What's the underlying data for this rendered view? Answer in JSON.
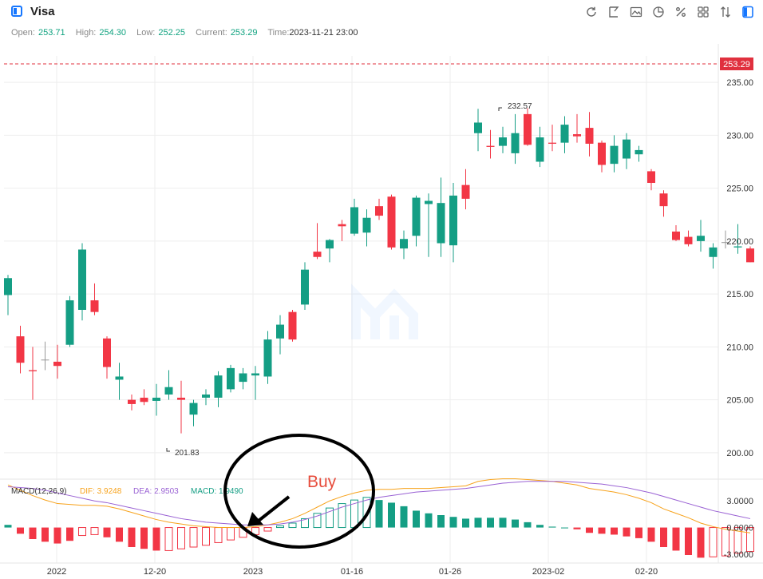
{
  "header": {
    "title": "Visa",
    "tools": [
      "refresh-icon",
      "draw-line-icon",
      "picture-icon",
      "pie-icon",
      "percent-icon",
      "grid-icon",
      "sort-icon",
      "panel-icon"
    ]
  },
  "ohlc": {
    "open_label": "Open:",
    "open": "253.71",
    "high_label": "High:",
    "high": "254.30",
    "low_label": "Low:",
    "low": "252.25",
    "current_label": "Current:",
    "current": "253.29",
    "time_label": "Time:",
    "time": "2023-11-21 23:00"
  },
  "colors": {
    "up": "#149e84",
    "down": "#f23645",
    "dif": "#f7a21b",
    "dea": "#9a62d4",
    "grid": "#eeeeee",
    "price_line": "#e0303e"
  },
  "chart_data": [
    {
      "type": "candlestick",
      "title": "Visa",
      "ylim": [
        197.5,
        237.5
      ],
      "y_ticks": [
        "235.00",
        "230.00",
        "225.00",
        "220.00",
        "215.00",
        "210.00",
        "205.00",
        "200.00"
      ],
      "x_ticks": [
        "2022",
        "12-20",
        "2023",
        "01-16",
        "01-26",
        "2023-02",
        "02-20"
      ],
      "last_price": "253.29",
      "annotations": {
        "high": "232.57",
        "low": "201.83"
      },
      "candles": [
        [
          214.9,
          216.8,
          213.0,
          216.5
        ],
        [
          211.0,
          212.0,
          207.5,
          208.5
        ],
        [
          207.8,
          210.0,
          205.0,
          207.7
        ],
        [
          208.8,
          210.5,
          207.8,
          208.8
        ],
        [
          208.6,
          210.2,
          207.0,
          208.2
        ],
        [
          210.2,
          214.8,
          210.0,
          214.4
        ],
        [
          213.5,
          219.8,
          212.5,
          219.2
        ],
        [
          214.4,
          216.0,
          213.0,
          213.3
        ],
        [
          210.8,
          211.0,
          207.0,
          208.1
        ],
        [
          206.9,
          208.5,
          205.0,
          207.2
        ],
        [
          205.0,
          205.5,
          204.0,
          204.6
        ],
        [
          205.2,
          206.0,
          204.5,
          204.8
        ],
        [
          204.9,
          206.5,
          203.5,
          205.2
        ],
        [
          205.5,
          207.8,
          205.0,
          206.2
        ],
        [
          205.2,
          206.8,
          201.83,
          205.0
        ],
        [
          203.6,
          205.0,
          202.5,
          204.7
        ],
        [
          205.2,
          206.0,
          204.5,
          205.5
        ],
        [
          205.2,
          207.7,
          204.3,
          207.3
        ],
        [
          206.0,
          208.3,
          205.7,
          208.0
        ],
        [
          206.7,
          208.0,
          206.0,
          207.5
        ],
        [
          207.3,
          208.2,
          205.0,
          207.5
        ],
        [
          207.2,
          211.5,
          206.5,
          210.7
        ],
        [
          210.8,
          213.0,
          209.3,
          212.1
        ],
        [
          213.3,
          213.5,
          210.5,
          210.7
        ],
        [
          214.0,
          218.0,
          213.5,
          217.3
        ],
        [
          219.0,
          221.7,
          218.3,
          218.5
        ],
        [
          219.3,
          220.2,
          218.0,
          220.1
        ],
        [
          221.6,
          222.0,
          220.0,
          221.4
        ],
        [
          220.7,
          224.0,
          220.5,
          223.2
        ],
        [
          220.8,
          223.0,
          219.5,
          222.2
        ],
        [
          223.3,
          224.0,
          222.0,
          222.4
        ],
        [
          224.2,
          224.4,
          219.2,
          219.4
        ],
        [
          219.3,
          221.0,
          218.3,
          220.2
        ],
        [
          220.5,
          224.3,
          219.5,
          224.1
        ],
        [
          223.5,
          224.5,
          218.5,
          223.8
        ],
        [
          219.8,
          226.0,
          218.5,
          223.6
        ],
        [
          219.6,
          225.5,
          218.0,
          224.3
        ],
        [
          225.3,
          226.8,
          223.0,
          224.0
        ],
        [
          230.2,
          232.5,
          228.5,
          231.2
        ],
        [
          229.0,
          230.5,
          227.8,
          228.9
        ],
        [
          229.0,
          230.8,
          228.3,
          229.8
        ],
        [
          228.3,
          232.0,
          227.3,
          230.2
        ],
        [
          232.0,
          232.57,
          229.0,
          229.1
        ],
        [
          227.5,
          230.8,
          227.0,
          229.8
        ],
        [
          229.3,
          231.0,
          228.5,
          229.2
        ],
        [
          229.3,
          231.8,
          228.3,
          231.0
        ],
        [
          230.1,
          232.0,
          229.3,
          229.9
        ],
        [
          230.7,
          232.2,
          228.0,
          229.2
        ],
        [
          229.3,
          229.5,
          226.5,
          227.2
        ],
        [
          227.3,
          230.0,
          226.5,
          229.0
        ],
        [
          227.8,
          230.2,
          226.8,
          229.6
        ],
        [
          228.2,
          229.0,
          227.5,
          228.6
        ],
        [
          226.6,
          226.8,
          224.8,
          225.5
        ],
        [
          224.5,
          224.8,
          222.3,
          223.3
        ],
        [
          220.9,
          221.5,
          220.0,
          220.1
        ],
        [
          220.4,
          221.0,
          219.5,
          219.7
        ],
        [
          220.0,
          222.0,
          219.0,
          220.5
        ],
        [
          218.5,
          219.8,
          217.4,
          219.4
        ],
        [
          219.9,
          221.0,
          219.3,
          219.9
        ],
        [
          219.4,
          221.6,
          218.8,
          219.5
        ],
        [
          219.3,
          219.5,
          218.0,
          218.0
        ]
      ]
    },
    {
      "type": "macd",
      "indicator_label": "MACD(12,26,9)",
      "dif_label": "DIF: 3.9248",
      "dea_label": "DEA: 2.9503",
      "macd_label": "MACD: 1.9490",
      "ylim": [
        -4.0,
        5.0
      ],
      "y_ticks": [
        "3.0000",
        "0.0000",
        "-3.0000"
      ],
      "histogram": [
        0.3,
        -0.7,
        -1.3,
        -1.6,
        -1.8,
        -1.5,
        -0.9,
        -0.8,
        -1.1,
        -1.6,
        -2.2,
        -2.4,
        -2.6,
        -2.6,
        -2.4,
        -2.2,
        -2.0,
        -1.7,
        -1.4,
        -1.1,
        -0.8,
        -0.4,
        0.2,
        0.5,
        1.0,
        1.6,
        2.2,
        2.7,
        3.1,
        3.4,
        3.1,
        2.8,
        2.4,
        1.9,
        1.6,
        1.4,
        1.2,
        1.0,
        1.1,
        1.1,
        1.1,
        0.9,
        0.6,
        0.3,
        0.1,
        0.0,
        -0.2,
        -0.6,
        -0.7,
        -0.8,
        -1.0,
        -1.2,
        -1.6,
        -2.2,
        -2.6,
        -3.1,
        -3.4,
        -3.3,
        -3.2,
        -2.9,
        -2.7
      ],
      "dif": [
        4.8,
        4.2,
        3.6,
        3.1,
        2.7,
        2.6,
        2.5,
        2.5,
        2.4,
        2.1,
        1.7,
        1.3,
        0.9,
        0.6,
        0.4,
        0.2,
        0.1,
        0.0,
        0.0,
        0.0,
        0.1,
        0.3,
        0.6,
        1.0,
        1.6,
        2.3,
        3.0,
        3.5,
        3.9,
        4.2,
        4.3,
        4.3,
        4.4,
        4.4,
        4.4,
        4.5,
        4.6,
        4.7,
        5.2,
        5.4,
        5.5,
        5.5,
        5.4,
        5.3,
        5.2,
        5.0,
        4.8,
        4.4,
        4.2,
        4.0,
        3.7,
        3.3,
        2.8,
        2.1,
        1.6,
        1.1,
        0.5,
        0.1,
        -0.2,
        -0.4,
        -0.6
      ],
      "dea": [
        4.6,
        4.5,
        4.4,
        4.2,
        3.9,
        3.6,
        3.3,
        3.0,
        2.8,
        2.5,
        2.2,
        1.9,
        1.6,
        1.3,
        1.0,
        0.8,
        0.6,
        0.5,
        0.4,
        0.3,
        0.3,
        0.3,
        0.4,
        0.6,
        0.9,
        1.3,
        1.8,
        2.3,
        2.7,
        3.1,
        3.4,
        3.6,
        3.8,
        4.0,
        4.1,
        4.2,
        4.3,
        4.4,
        4.6,
        4.8,
        5.0,
        5.1,
        5.2,
        5.2,
        5.2,
        5.2,
        5.1,
        5.0,
        4.9,
        4.7,
        4.5,
        4.2,
        3.9,
        3.5,
        3.1,
        2.7,
        2.3,
        1.9,
        1.6,
        1.3,
        1.0
      ]
    }
  ],
  "annotation": {
    "text": "Buy"
  }
}
